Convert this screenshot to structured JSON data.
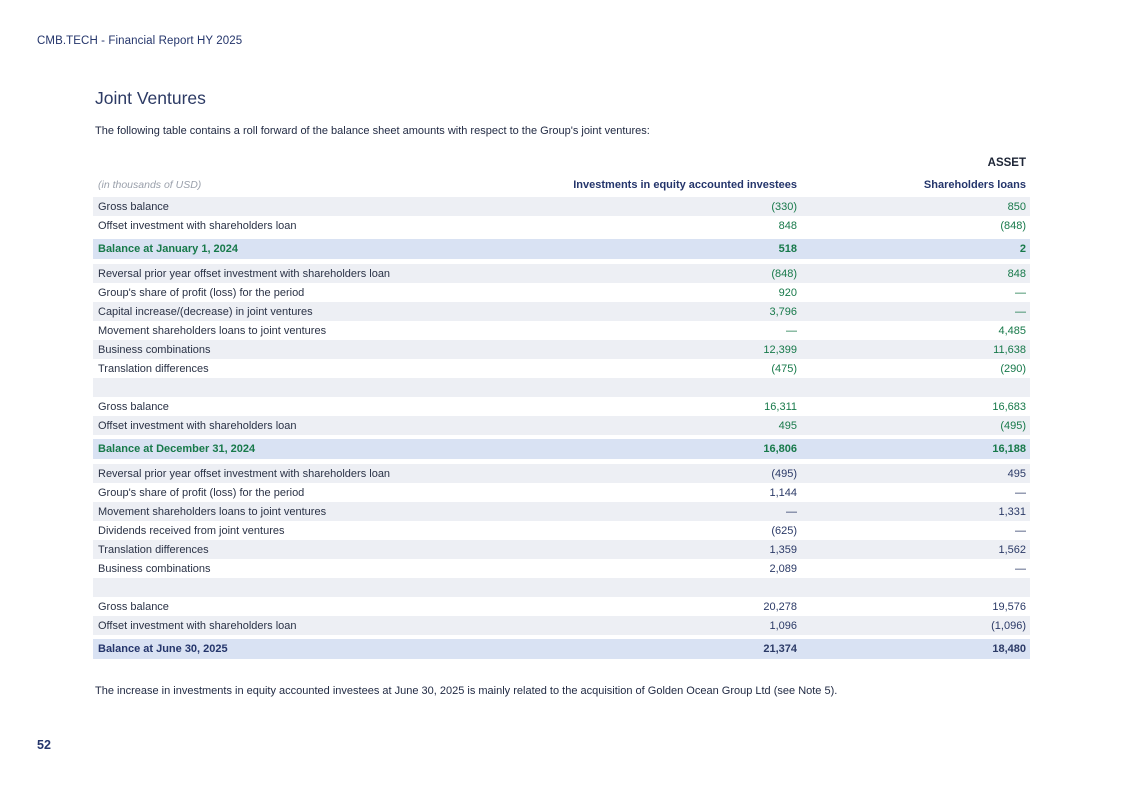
{
  "page": {
    "header": "CMB.TECH - Financial Report HY 2025",
    "page_number": "52"
  },
  "section": {
    "title": "Joint Ventures",
    "intro": "The following table contains a roll forward of the balance sheet amounts with respect to the Group's joint ventures:",
    "footnote": "The increase in investments in equity accounted investees at June 30, 2025 is mainly related to the acquisition of Golden Ocean Group Ltd (see Note 5)."
  },
  "table": {
    "group_header": "ASSET",
    "unit_label": "(in thousands of USD)",
    "columns": [
      "Investments in equity accounted investees",
      "Shareholders loans"
    ],
    "rows": [
      {
        "type": "data",
        "shade": "gray",
        "tone": "green",
        "label": "Gross balance",
        "col1": "(330)",
        "col2": "850"
      },
      {
        "type": "data",
        "shade": "white",
        "tone": "green",
        "label": "Offset investment with shareholders loan",
        "col1": "848",
        "col2": "(848)"
      },
      {
        "type": "balance",
        "shade": "blue",
        "tone": "green",
        "label": "Balance at January 1, 2024",
        "col1": "518",
        "col2": "2"
      },
      {
        "type": "data",
        "shade": "gray",
        "tone": "green",
        "label": "Reversal prior year offset investment with shareholders loan",
        "col1": "(848)",
        "col2": "848"
      },
      {
        "type": "data",
        "shade": "white",
        "tone": "green",
        "label": "Group's share of profit (loss) for the period",
        "col1": "920",
        "col2": "—"
      },
      {
        "type": "data",
        "shade": "gray",
        "tone": "green",
        "label": "Capital increase/(decrease) in joint ventures",
        "col1": "3,796",
        "col2": "—"
      },
      {
        "type": "data",
        "shade": "white",
        "tone": "green",
        "label": "Movement shareholders loans to joint ventures",
        "col1": "—",
        "col2": "4,485"
      },
      {
        "type": "data",
        "shade": "gray",
        "tone": "green",
        "label": "Business combinations",
        "col1": "12,399",
        "col2": "11,638"
      },
      {
        "type": "data",
        "shade": "white",
        "tone": "green",
        "label": "Translation differences",
        "col1": "(475)",
        "col2": "(290)"
      },
      {
        "type": "data",
        "shade": "gray",
        "tone": "green",
        "label": "",
        "col1": "",
        "col2": ""
      },
      {
        "type": "data",
        "shade": "white",
        "tone": "green",
        "label": "Gross balance",
        "col1": "16,311",
        "col2": "16,683"
      },
      {
        "type": "data",
        "shade": "gray",
        "tone": "green",
        "label": "Offset investment with shareholders loan",
        "col1": "495",
        "col2": "(495)"
      },
      {
        "type": "balance",
        "shade": "blue",
        "tone": "green",
        "label": "Balance at December 31, 2024",
        "col1": "16,806",
        "col2": "16,188"
      },
      {
        "type": "data",
        "shade": "gray",
        "tone": "navy",
        "label": "Reversal prior year offset investment with shareholders loan",
        "col1": "(495)",
        "col2": "495"
      },
      {
        "type": "data",
        "shade": "white",
        "tone": "navy",
        "label": "Group's share of profit (loss) for the period",
        "col1": "1,144",
        "col2": "—"
      },
      {
        "type": "data",
        "shade": "gray",
        "tone": "navy",
        "label": "Movement shareholders loans to joint ventures",
        "col1": "—",
        "col2": "1,331"
      },
      {
        "type": "data",
        "shade": "white",
        "tone": "navy",
        "label": "Dividends received from joint ventures",
        "col1": "(625)",
        "col2": "—"
      },
      {
        "type": "data",
        "shade": "gray",
        "tone": "navy",
        "label": "Translation differences",
        "col1": "1,359",
        "col2": "1,562"
      },
      {
        "type": "data",
        "shade": "white",
        "tone": "navy",
        "label": "Business combinations",
        "col1": "2,089",
        "col2": "—"
      },
      {
        "type": "data",
        "shade": "gray",
        "tone": "navy",
        "label": "",
        "col1": "",
        "col2": ""
      },
      {
        "type": "data",
        "shade": "white",
        "tone": "navy",
        "label": "Gross balance",
        "col1": "20,278",
        "col2": "19,576"
      },
      {
        "type": "data",
        "shade": "gray",
        "tone": "navy",
        "label": "Offset investment with shareholders loan",
        "col1": "1,096",
        "col2": "(1,096)"
      },
      {
        "type": "balance",
        "shade": "blue",
        "tone": "navy",
        "label": "Balance at June 30, 2025",
        "col1": "21,374",
        "col2": "18,480"
      }
    ]
  },
  "colors": {
    "navy": "#24356b",
    "green": "#17794a",
    "row_gray": "#edeff4",
    "row_blue": "#d9e2f3",
    "muted_gray": "#9aa0ab"
  }
}
